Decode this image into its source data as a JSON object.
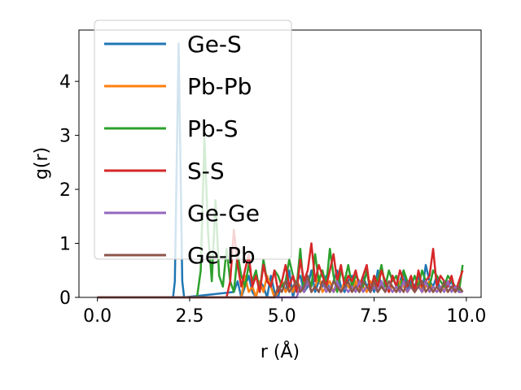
{
  "chart_data": {
    "type": "line",
    "xlabel": "r (Å)",
    "ylabel": "g(r)",
    "xlim": [
      -0.5,
      10.4
    ],
    "ylim": [
      0,
      4.95
    ],
    "xticks": [
      0.0,
      2.5,
      5.0,
      7.5,
      10.0
    ],
    "xtick_labels": [
      "0.0",
      "2.5",
      "5.0",
      "7.5",
      "10.0"
    ],
    "yticks": [
      0,
      1,
      2,
      3,
      4
    ],
    "ytick_labels": [
      "0",
      "1",
      "2",
      "3",
      "4"
    ],
    "grid": false,
    "legend_position": "upper-left",
    "series": [
      {
        "name": "Ge-S",
        "color": "#1f77b4",
        "x": [
          0,
          2.05,
          2.1,
          2.2,
          2.3,
          2.35,
          3.7,
          3.8,
          3.9,
          4.0,
          4.1,
          4.2,
          4.3,
          4.4,
          4.5,
          4.6,
          4.7,
          4.8,
          4.9,
          5.0,
          5.1,
          5.2,
          5.3,
          5.4,
          5.5,
          5.6,
          5.7,
          5.8,
          5.9,
          6.0,
          6.1,
          6.2,
          6.3,
          6.4,
          6.5,
          6.6,
          6.7,
          6.8,
          6.9,
          7.0,
          7.1,
          7.2,
          7.3,
          7.4,
          7.5,
          7.6,
          7.7,
          7.8,
          7.9,
          8.0,
          8.1,
          8.2,
          8.3,
          8.4,
          8.5,
          8.6,
          8.7,
          8.8,
          8.9,
          9.0,
          9.1,
          9.2,
          9.3,
          9.4,
          9.5,
          9.6,
          9.7,
          9.8,
          9.9
        ],
        "y": [
          0,
          0,
          0.3,
          4.7,
          0.3,
          0,
          0.1,
          0.3,
          0,
          0.2,
          0.4,
          0.1,
          0,
          0.3,
          0.2,
          0,
          0.4,
          0.1,
          0,
          0.3,
          0.1,
          0.5,
          0,
          0.3,
          0.4,
          0.1,
          0.2,
          0.5,
          0.1,
          0.3,
          0.2,
          0.4,
          0.1,
          0.3,
          0.5,
          0.2,
          0.1,
          0.3,
          0.4,
          0.2,
          0.1,
          0.4,
          0.2,
          0.3,
          0.1,
          0.5,
          0.2,
          0.3,
          0.1,
          0.4,
          0.2,
          0.3,
          0.5,
          0.1,
          0.3,
          0.2,
          0.4,
          0.1,
          0.6,
          0.3,
          0.2,
          0.4,
          0.1,
          0.3,
          0.2,
          0.3,
          0.1,
          0.2,
          0.1
        ]
      },
      {
        "name": "Pb-Pb",
        "color": "#ff7f0e",
        "x": [
          0,
          3.9,
          4.0,
          4.1,
          4.2,
          4.3,
          4.4,
          4.5,
          4.6,
          4.7,
          4.8,
          4.9,
          5.0,
          5.1,
          5.2,
          5.3,
          5.4,
          5.5,
          5.6,
          5.7,
          5.8,
          5.9,
          6.0,
          6.1,
          6.2,
          6.3,
          6.4,
          6.5,
          6.6,
          6.7,
          6.8,
          6.9,
          7.0,
          7.1,
          7.2,
          7.3,
          7.4,
          7.5,
          7.6,
          7.7,
          7.8,
          7.9,
          8.0,
          8.1,
          8.2,
          8.3,
          8.4,
          8.5,
          8.6,
          8.7,
          8.8,
          8.9,
          9.0,
          9.1,
          9.2,
          9.3,
          9.4,
          9.5,
          9.6,
          9.7,
          9.8,
          9.9
        ],
        "y": [
          0,
          0,
          0.4,
          0.1,
          0.2,
          0,
          0.3,
          0.1,
          0.4,
          0.2,
          0,
          0.1,
          0.3,
          0.1,
          0.2,
          0.1,
          0.3,
          0.2,
          0.1,
          0.3,
          0.1,
          0.2,
          0.4,
          0.1,
          0.2,
          0.3,
          0.1,
          0.2,
          0.1,
          0.3,
          0.2,
          0.1,
          0.3,
          0.1,
          0.2,
          0.1,
          0.3,
          0.2,
          0.1,
          0.2,
          0.3,
          0.1,
          0.2,
          0.1,
          0.3,
          0.2,
          0.1,
          0.2,
          0.1,
          0.3,
          0.1,
          0.2,
          0.3,
          0.1,
          0.2,
          0.1,
          0.2,
          0.1,
          0.2,
          0.1,
          0.2,
          0.1
        ]
      },
      {
        "name": "Pb-S",
        "color": "#2ca02c",
        "x": [
          0,
          2.7,
          2.8,
          2.9,
          3.0,
          3.1,
          3.2,
          3.3,
          3.4,
          3.5,
          3.6,
          3.7,
          3.8,
          3.9,
          4.0,
          4.1,
          4.2,
          4.3,
          4.4,
          4.5,
          4.6,
          4.7,
          4.8,
          4.9,
          5.0,
          5.1,
          5.2,
          5.3,
          5.4,
          5.5,
          5.6,
          5.7,
          5.8,
          5.9,
          6.0,
          6.1,
          6.2,
          6.3,
          6.4,
          6.5,
          6.6,
          6.7,
          6.8,
          6.9,
          7.0,
          7.1,
          7.2,
          7.3,
          7.4,
          7.5,
          7.6,
          7.7,
          7.8,
          7.9,
          8.0,
          8.1,
          8.2,
          8.3,
          8.4,
          8.5,
          8.6,
          8.7,
          8.8,
          8.9,
          9.0,
          9.1,
          9.2,
          9.3,
          9.4,
          9.5,
          9.6,
          9.7,
          9.8,
          9.9
        ],
        "y": [
          0,
          0,
          0.5,
          2.95,
          1.2,
          0.3,
          1.8,
          0.4,
          0.2,
          0.9,
          0.3,
          0.1,
          0.8,
          0.4,
          0.2,
          0.6,
          0.3,
          0.5,
          0.1,
          0.7,
          0.3,
          0.2,
          0.5,
          0.4,
          0.2,
          0.3,
          0.7,
          0.4,
          0.2,
          0.9,
          0.1,
          0.4,
          0.2,
          0.8,
          0.3,
          0.5,
          0.2,
          0.9,
          0.4,
          0.1,
          0.5,
          0.3,
          0.6,
          0.2,
          0.4,
          0.3,
          0.2,
          0.5,
          0.1,
          0.4,
          0.3,
          0.6,
          0.2,
          0.5,
          0.3,
          0.4,
          0.1,
          0.5,
          0.3,
          0.2,
          0.4,
          0.2,
          0.5,
          0.3,
          0.2,
          0.5,
          0.4,
          0.3,
          0.2,
          0.4,
          0.3,
          0.2,
          0.1,
          0.6
        ]
      },
      {
        "name": "S-S",
        "color": "#d62728",
        "x": [
          0,
          3.5,
          3.6,
          3.7,
          3.8,
          3.9,
          4.0,
          4.1,
          4.2,
          4.3,
          4.4,
          4.5,
          4.6,
          4.7,
          4.8,
          4.9,
          5.0,
          5.1,
          5.2,
          5.3,
          5.4,
          5.5,
          5.6,
          5.7,
          5.8,
          5.9,
          6.0,
          6.1,
          6.2,
          6.3,
          6.4,
          6.5,
          6.6,
          6.7,
          6.8,
          6.9,
          7.0,
          7.1,
          7.2,
          7.3,
          7.4,
          7.5,
          7.6,
          7.7,
          7.8,
          7.9,
          8.0,
          8.1,
          8.2,
          8.3,
          8.4,
          8.5,
          8.6,
          8.7,
          8.8,
          8.9,
          9.0,
          9.1,
          9.2,
          9.3,
          9.4,
          9.5,
          9.6,
          9.7,
          9.8,
          9.9
        ],
        "y": [
          0,
          0,
          0.3,
          1.25,
          0.6,
          0.2,
          0.5,
          0.8,
          0.2,
          0.4,
          0.1,
          0.6,
          0.3,
          0.2,
          0.5,
          0.1,
          0.3,
          0.6,
          0.2,
          0.4,
          0.1,
          0.7,
          0.3,
          0.5,
          1.0,
          0.3,
          0.6,
          0.4,
          0.2,
          0.5,
          0.8,
          0.3,
          0.6,
          0.2,
          0.4,
          0.3,
          0.5,
          0.2,
          0.4,
          0.6,
          0.1,
          0.4,
          0.2,
          0.5,
          0.3,
          0.1,
          0.4,
          0.2,
          0.5,
          0.3,
          0.2,
          0.4,
          0.1,
          0.5,
          0.2,
          0.3,
          0.4,
          0.9,
          0.2,
          0.4,
          0.3,
          0.2,
          0.4,
          0.1,
          0.3,
          0.5
        ]
      },
      {
        "name": "Ge-Ge",
        "color": "#9467bd",
        "x": [
          0,
          5.4,
          5.5,
          5.6,
          5.7,
          5.8,
          5.9,
          6.0,
          6.1,
          6.2,
          6.3,
          6.4,
          6.5,
          6.6,
          6.7,
          6.8,
          6.9,
          7.0,
          7.1,
          7.2,
          7.3,
          7.4,
          7.5,
          7.6,
          7.7,
          7.8,
          7.9,
          8.0,
          8.1,
          8.2,
          8.3,
          8.4,
          8.5,
          8.6,
          8.7,
          8.8,
          8.9,
          9.0,
          9.1,
          9.2,
          9.3,
          9.4,
          9.5,
          9.6,
          9.7,
          9.8,
          9.9
        ],
        "y": [
          0,
          0,
          0.2,
          0.1,
          0.3,
          0.1,
          0.2,
          0.1,
          0.3,
          0.1,
          0.2,
          0.1,
          0.3,
          0.1,
          0.2,
          0.1,
          0.2,
          0.1,
          0.3,
          0.1,
          0.2,
          0.1,
          0.2,
          0.1,
          0.3,
          0.1,
          0.2,
          0.1,
          0.2,
          0.1,
          0.3,
          0.1,
          0.2,
          0.1,
          0.2,
          0.1,
          0.3,
          0.1,
          0.2,
          0.1,
          0.2,
          0.1,
          0.3,
          0.1,
          0.2,
          0.1,
          0.1
        ]
      },
      {
        "name": "Ge-Pb",
        "color": "#8c564b",
        "x": [
          0,
          4.8,
          4.9,
          5.0,
          5.1,
          5.2,
          5.3,
          5.4,
          5.5,
          5.6,
          5.7,
          5.8,
          5.9,
          6.0,
          6.1,
          6.2,
          6.3,
          6.4,
          6.5,
          6.6,
          6.7,
          6.8,
          6.9,
          7.0,
          7.1,
          7.2,
          7.3,
          7.4,
          7.5,
          7.6,
          7.7,
          7.8,
          7.9,
          8.0,
          8.1,
          8.2,
          8.3,
          8.4,
          8.5,
          8.6,
          8.7,
          8.8,
          8.9,
          9.0,
          9.1,
          9.2,
          9.3,
          9.4,
          9.5,
          9.6,
          9.7,
          9.8,
          9.9
        ],
        "y": [
          0,
          0,
          0.2,
          0.1,
          0.3,
          0.1,
          0.2,
          0.3,
          0.1,
          0.2,
          0.4,
          0.1,
          0.2,
          0.1,
          0.3,
          0.2,
          0.1,
          0.3,
          0.2,
          0.1,
          0.2,
          0.3,
          0.1,
          0.2,
          0.1,
          0.3,
          0.2,
          0.1,
          0.3,
          0.1,
          0.2,
          0.1,
          0.3,
          0.2,
          0.1,
          0.2,
          0.1,
          0.3,
          0.2,
          0.1,
          0.2,
          0.3,
          0.1,
          0.2,
          0.1,
          0.2,
          0.1,
          0.3,
          0.1,
          0.2,
          0.1,
          0.2,
          0.1
        ]
      }
    ]
  }
}
